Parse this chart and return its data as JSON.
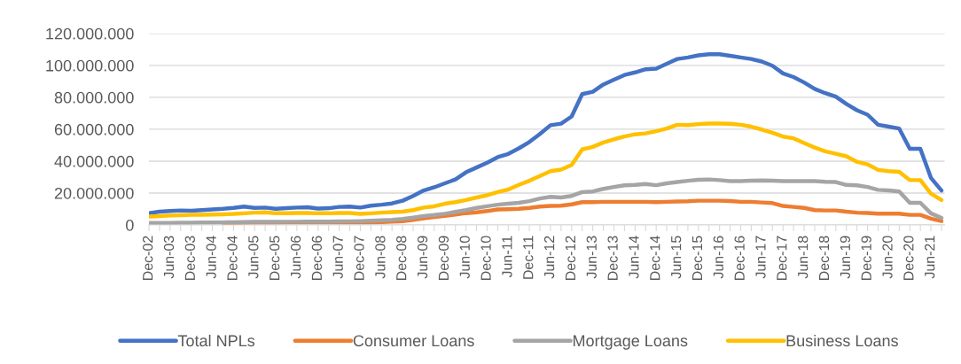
{
  "chart_data": {
    "type": "line",
    "categories": [
      "Dec-02",
      null,
      "Jun-03",
      null,
      "Dec-03",
      null,
      "Jun-04",
      null,
      "Dec-04",
      null,
      "Jun-05",
      null,
      "Dec-05",
      null,
      "Jun-06",
      null,
      "Dec-06",
      null,
      "Jun-07",
      null,
      "Dec-07",
      null,
      "Jun-08",
      null,
      "Dec-08",
      null,
      "Jun-09",
      null,
      "Dec-09",
      null,
      "Jun-10",
      null,
      "Dec-10",
      null,
      "Jun-11",
      null,
      "Dec-11",
      null,
      "Jun-12",
      null,
      "Dec-12",
      null,
      "Jun-13",
      null,
      "Dec-13",
      null,
      "Jun-14",
      null,
      "Dec-14",
      null,
      "Jun-15",
      null,
      "Dec-15",
      null,
      "Jun-16",
      null,
      "Dec-16",
      null,
      "Jun-17",
      null,
      "Dec-17",
      null,
      "Jun-18",
      null,
      "Dec-18",
      null,
      "Jun-19",
      null,
      "Dec-19",
      null,
      "Jun-20",
      null,
      "Dec-20",
      null,
      "Jun-21",
      null
    ],
    "series": [
      {
        "name": "Total NPLs",
        "color": "#4472c4",
        "values": [
          7300000,
          8300000,
          8700000,
          9100000,
          8900000,
          9300000,
          9700000,
          10100000,
          10700000,
          11500000,
          10700000,
          10900000,
          10100000,
          10500000,
          10900000,
          11100000,
          10300000,
          10500000,
          11300000,
          11500000,
          10900000,
          12100000,
          12700000,
          13500000,
          15200000,
          18200000,
          21600000,
          23600000,
          26100000,
          28500000,
          33000000,
          36000000,
          39000000,
          42500000,
          44500000,
          48000000,
          52000000,
          57000000,
          62500000,
          63500000,
          68000000,
          82000000,
          83500000,
          88000000,
          91000000,
          94000000,
          95600000,
          97600000,
          98000000,
          101000000,
          104000000,
          105000000,
          106300000,
          107000000,
          107000000,
          106000000,
          105000000,
          104000000,
          102400000,
          99800000,
          95000000,
          92700000,
          89300000,
          85300000,
          82600000,
          80400000,
          75800000,
          71900000,
          69100000,
          62800000,
          61600000,
          60400000,
          47700000,
          47700000,
          29500000,
          21600000
        ]
      },
      {
        "name": "Consumer Loans",
        "color": "#ed7d31",
        "values": [
          null,
          null,
          null,
          null,
          null,
          null,
          null,
          1200000,
          1300000,
          1400000,
          1500000,
          1500000,
          1500000,
          1600000,
          1600000,
          1700000,
          1700000,
          1700000,
          1600000,
          1600000,
          1600000,
          1700000,
          1800000,
          2000000,
          2400000,
          3200000,
          4200000,
          5000000,
          5700000,
          6500000,
          7400000,
          7900000,
          8700000,
          9700000,
          9900000,
          10100000,
          10700000,
          11500000,
          11900000,
          12100000,
          12900000,
          14300000,
          14300000,
          14500000,
          14500000,
          14500000,
          14500000,
          14500000,
          14300000,
          14500000,
          14700000,
          14800000,
          15200000,
          15200000,
          15200000,
          15000000,
          14500000,
          14500000,
          14100000,
          13700000,
          11900000,
          11300000,
          10700000,
          9300000,
          9100000,
          9100000,
          8300000,
          7700000,
          7500000,
          7100000,
          7100000,
          7100000,
          6300000,
          6300000,
          4000000,
          2400000
        ]
      },
      {
        "name": "Mortgage Loans",
        "color": "#a5a5a5",
        "values": [
          1200000,
          1300000,
          1300000,
          1400000,
          1400000,
          1500000,
          1500000,
          1600000,
          1700000,
          1800000,
          1900000,
          1900000,
          1900000,
          2000000,
          2000000,
          2100000,
          2100000,
          2100000,
          2200000,
          2300000,
          2400000,
          2600000,
          2900000,
          3200000,
          3800000,
          4600000,
          5600000,
          6200000,
          7000000,
          8200000,
          9300000,
          10700000,
          11700000,
          12700000,
          13300000,
          13900000,
          14900000,
          16600000,
          17600000,
          17200000,
          18200000,
          20600000,
          21000000,
          22600000,
          23800000,
          24800000,
          25100000,
          25700000,
          24900000,
          26100000,
          26900000,
          27700000,
          28300000,
          28500000,
          28100000,
          27500000,
          27500000,
          27700000,
          27900000,
          27700000,
          27500000,
          27500000,
          27500000,
          27500000,
          27100000,
          26900000,
          25100000,
          24800000,
          23800000,
          22000000,
          21600000,
          21000000,
          13900000,
          13900000,
          7300000,
          4400000
        ]
      },
      {
        "name": "Business Loans",
        "color": "#ffc000",
        "values": [
          5300000,
          5600000,
          5900000,
          6100000,
          6300000,
          6400000,
          6500000,
          6700000,
          6900000,
          7300000,
          7700000,
          7900000,
          7300000,
          7400000,
          7500000,
          7500000,
          7300000,
          7300000,
          7500000,
          7500000,
          6900000,
          7300000,
          7700000,
          8000000,
          8300000,
          9300000,
          10900000,
          11700000,
          13300000,
          14300000,
          15600000,
          17200000,
          18600000,
          20600000,
          22200000,
          25100000,
          27700000,
          30700000,
          33700000,
          34700000,
          37600000,
          47300000,
          48900000,
          51700000,
          53700000,
          55400000,
          56800000,
          57400000,
          58800000,
          60400000,
          62800000,
          62600000,
          63200000,
          63600000,
          63600000,
          63400000,
          62800000,
          61600000,
          59800000,
          57800000,
          55400000,
          54300000,
          51300000,
          48500000,
          46100000,
          44600000,
          43000000,
          39600000,
          38000000,
          34500000,
          33700000,
          33300000,
          28100000,
          28100000,
          19600000,
          15600000
        ]
      }
    ],
    "ylim": [
      0,
      120000000
    ],
    "yticks": [
      0,
      {
        "value": 20000000,
        "label": "20.000.000"
      },
      {
        "value": 40000000,
        "label": "40.000.000"
      },
      {
        "value": 60000000,
        "label": "60.000.000"
      },
      {
        "value": 80000000,
        "label": "80.000.000"
      },
      {
        "value": 100000000,
        "label": "100.000.000"
      },
      {
        "value": 120000000,
        "label": "120.000.000"
      }
    ],
    "grid": "y",
    "legend": "bottom",
    "marker": "none",
    "line_style": "solid"
  }
}
